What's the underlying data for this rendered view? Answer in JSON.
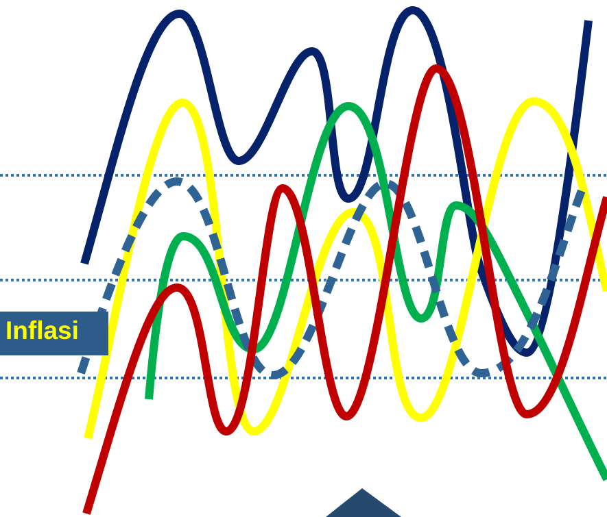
{
  "label": {
    "text": "Inflasi"
  },
  "colors": {
    "navy": "#06226A",
    "yellow": "#FFFF00",
    "green": "#00B04F",
    "red": "#C00000",
    "dashed": "#2E6393",
    "guide": "#2E75B6",
    "label_bg": "#2E5C8A",
    "label_text": "#FFFF00",
    "arrow": "#264A6E"
  },
  "icons": {
    "arrow": "triangle-up-shape"
  }
}
